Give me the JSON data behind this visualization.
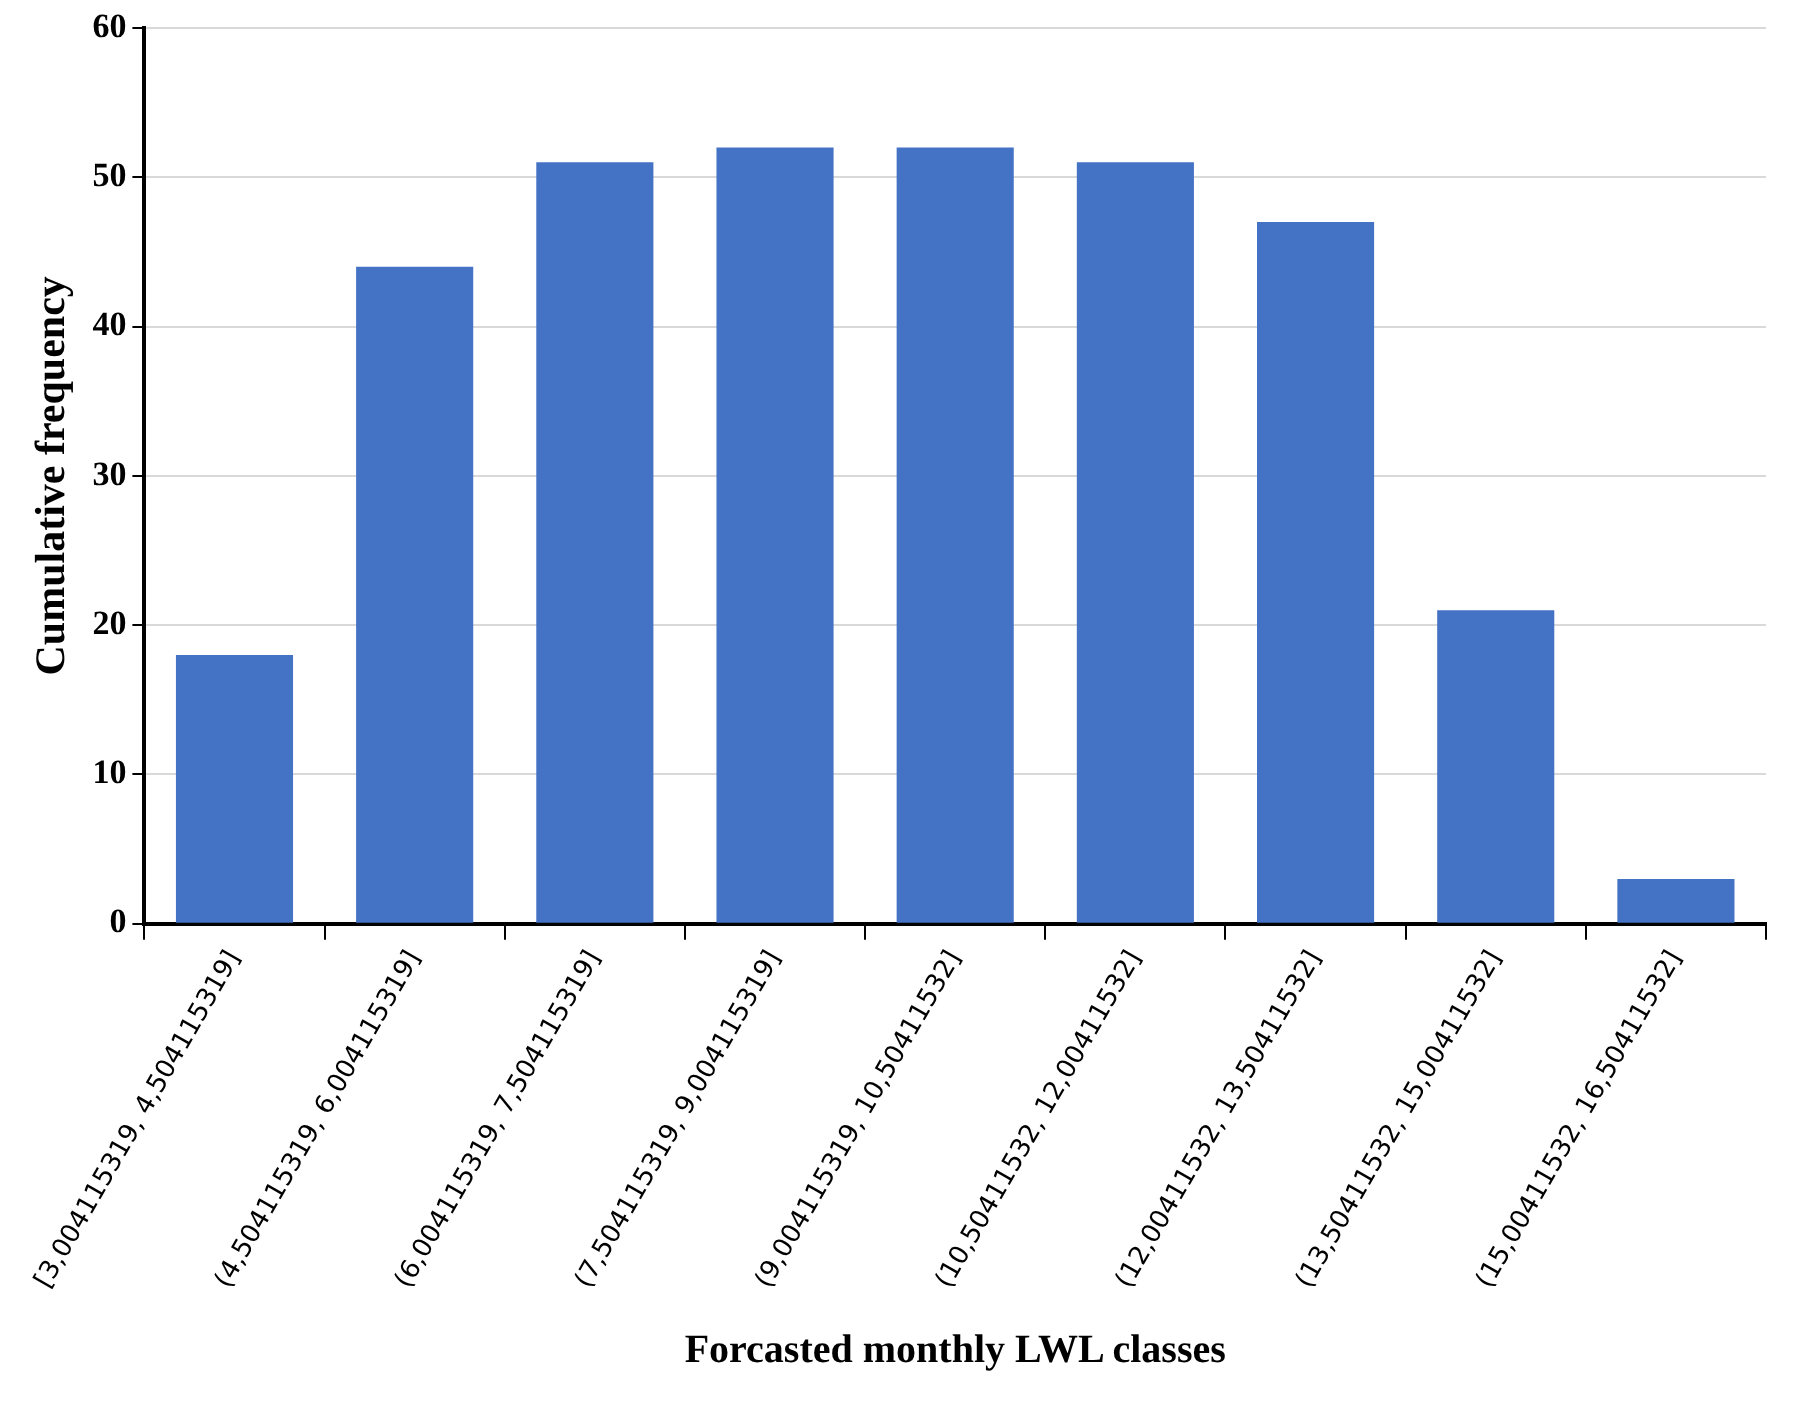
{
  "chart_data": {
    "type": "bar",
    "xlabel": "Forcasted monthly LWL classes",
    "ylabel": "Cumulative frequency",
    "categories": [
      "[3,004115319, 4,504115319]",
      "(4,504115319, 6,004115319]",
      "(6,004115319, 7,504115319]",
      "(7,504115319, 9,004115319]",
      "(9,004115319, 10,50411532]",
      "(10,50411532, 12,00411532]",
      "(12,00411532, 13,50411532]",
      "(13,50411532, 15,00411532]",
      "(15,00411532, 16,50411532]"
    ],
    "values": [
      18,
      44,
      51,
      52,
      52,
      51,
      47,
      21,
      3
    ],
    "color": "#4472c4",
    "ylim": [
      0,
      60
    ],
    "yticks": [
      0,
      10,
      20,
      30,
      40,
      50,
      60
    ],
    "grid": "y"
  }
}
